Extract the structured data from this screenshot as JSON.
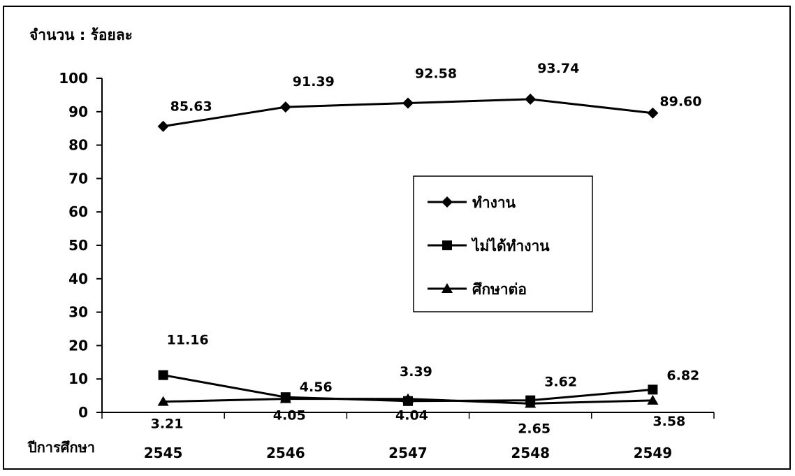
{
  "chart_data": {
    "type": "line",
    "ylabel": "จำนวน : ร้อยละ",
    "xlabel": "ปีการศึกษา",
    "categories": [
      "2545",
      "2546",
      "2547",
      "2548",
      "2549"
    ],
    "ylim": [
      0,
      100
    ],
    "yticks": [
      "0",
      "10",
      "20",
      "30",
      "40",
      "50",
      "60",
      "70",
      "80",
      "90",
      "100"
    ],
    "grid": false,
    "legend_position": "center-right",
    "series": [
      {
        "name": "ทำงาน",
        "marker": "diamond",
        "values": [
          85.63,
          91.39,
          92.58,
          93.74,
          89.6
        ],
        "labels": [
          "85.63",
          "91.39",
          "92.58",
          "93.74",
          "89.60"
        ]
      },
      {
        "name": "ไม่ได้ทำงาน",
        "marker": "square",
        "values": [
          11.16,
          4.56,
          3.39,
          3.62,
          6.82
        ],
        "labels": [
          "11.16",
          "4.56",
          "3.39",
          "3.62",
          "6.82"
        ]
      },
      {
        "name": "ศึกษาต่อ",
        "marker": "triangle",
        "values": [
          3.21,
          4.05,
          4.04,
          2.65,
          3.58
        ],
        "labels": [
          "3.21",
          "4.05",
          "4.04",
          "2.65",
          "3.58"
        ]
      }
    ]
  }
}
